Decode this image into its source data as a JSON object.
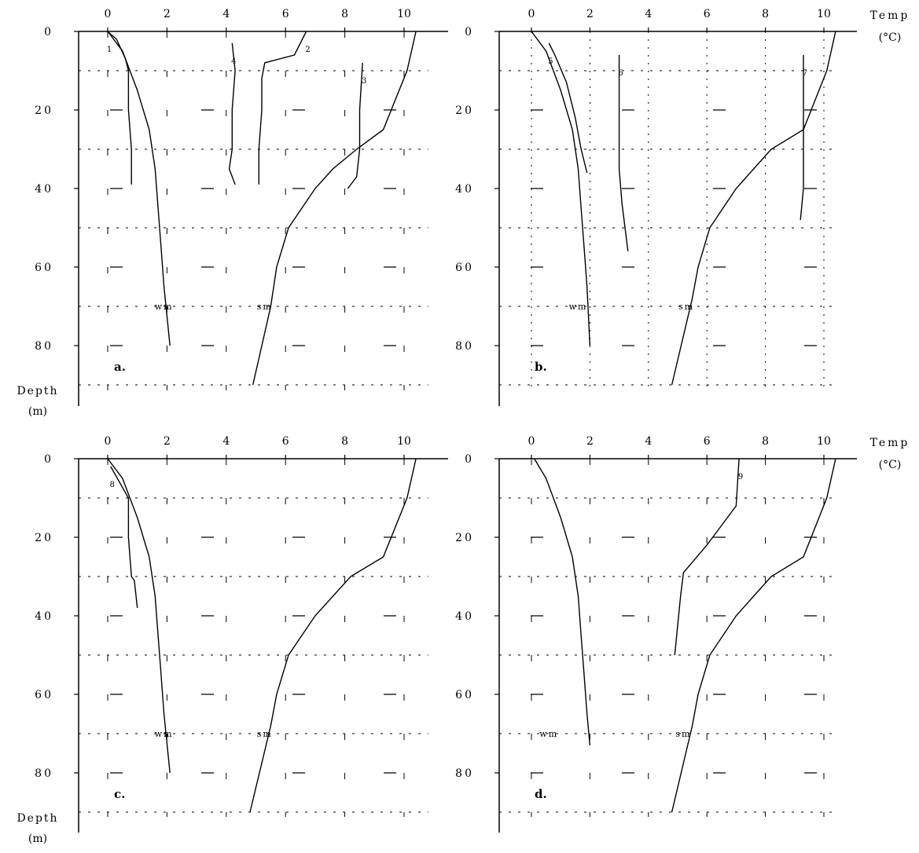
{
  "chart_data": [
    {
      "panel": "a.",
      "type": "line",
      "x_axis": {
        "label": "",
        "ticks": [
          0,
          2,
          4,
          6,
          8,
          10
        ],
        "range": [
          -1,
          11
        ]
      },
      "y_axis": {
        "label": "Depth (m)",
        "ticks": [
          0,
          20,
          40,
          60,
          80
        ],
        "range": [
          0,
          95
        ]
      },
      "grid": "dashed, 10 m horizontal and 2 °C vertical",
      "series": [
        {
          "name": "wm",
          "values": [
            [
              0,
              0
            ],
            [
              0.5,
              5
            ],
            [
              1.0,
              15
            ],
            [
              1.4,
              25
            ],
            [
              1.6,
              35
            ],
            [
              1.7,
              45
            ],
            [
              1.8,
              55
            ],
            [
              1.9,
              65
            ],
            [
              2.1,
              80
            ]
          ]
        },
        {
          "name": "sm",
          "values": [
            [
              10.4,
              0
            ],
            [
              10.1,
              10
            ],
            [
              9.3,
              25
            ],
            [
              8.4,
              30
            ],
            [
              7.6,
              35
            ],
            [
              7.0,
              40
            ],
            [
              6.1,
              50
            ],
            [
              5.7,
              60
            ],
            [
              5.5,
              70
            ],
            [
              4.9,
              90
            ]
          ]
        },
        {
          "name": "1",
          "values": [
            [
              0,
              0
            ],
            [
              0.3,
              2
            ],
            [
              0.6,
              7
            ],
            [
              0.7,
              10
            ],
            [
              0.7,
              20
            ],
            [
              0.8,
              30
            ],
            [
              0.8,
              39
            ]
          ]
        },
        {
          "name": "2",
          "values": [
            [
              6.7,
              0
            ],
            [
              6.3,
              6
            ],
            [
              5.3,
              8
            ],
            [
              5.2,
              12
            ],
            [
              5.2,
              20
            ],
            [
              5.1,
              30
            ],
            [
              5.1,
              39
            ]
          ]
        },
        {
          "name": "3",
          "values": [
            [
              8.6,
              8
            ],
            [
              8.5,
              20
            ],
            [
              8.5,
              30
            ],
            [
              8.4,
              37
            ],
            [
              8.1,
              40
            ]
          ]
        },
        {
          "name": "4",
          "values": [
            [
              4.2,
              3
            ],
            [
              4.3,
              10
            ],
            [
              4.2,
              20
            ],
            [
              4.2,
              30
            ],
            [
              4.1,
              35
            ],
            [
              4.3,
              39
            ]
          ]
        }
      ],
      "markers": [
        {
          "text": "wm",
          "x": 1.9,
          "y": 70
        },
        {
          "text": "sm",
          "x": 5.3,
          "y": 70
        }
      ]
    },
    {
      "panel": "b.",
      "type": "line",
      "x_axis": {
        "label": "Temp (°C)",
        "ticks": [
          0,
          2,
          4,
          6,
          8,
          10
        ],
        "range": [
          -1,
          11
        ]
      },
      "y_axis": {
        "label": "",
        "ticks": [
          0,
          20,
          40,
          60,
          80
        ],
        "range": [
          0,
          95
        ]
      },
      "grid": "dashed horizontal, dotted vertical",
      "series": [
        {
          "name": "wm",
          "values": [
            [
              0,
              0
            ],
            [
              0.5,
              5
            ],
            [
              1.0,
              15
            ],
            [
              1.4,
              25
            ],
            [
              1.6,
              35
            ],
            [
              1.7,
              45
            ],
            [
              1.8,
              55
            ],
            [
              1.9,
              65
            ],
            [
              2.0,
              80
            ]
          ]
        },
        {
          "name": "sm",
          "values": [
            [
              10.4,
              0
            ],
            [
              10.1,
              10
            ],
            [
              9.3,
              25
            ],
            [
              8.2,
              30
            ],
            [
              7.6,
              35
            ],
            [
              7.0,
              40
            ],
            [
              6.1,
              50
            ],
            [
              5.7,
              60
            ],
            [
              5.5,
              68
            ],
            [
              4.8,
              90
            ]
          ]
        },
        {
          "name": "5",
          "values": [
            [
              0.6,
              3
            ],
            [
              0.8,
              6
            ],
            [
              1.2,
              13
            ],
            [
              1.5,
              22
            ],
            [
              1.7,
              30
            ],
            [
              1.9,
              36
            ]
          ]
        },
        {
          "name": "6",
          "values": [
            [
              3.0,
              6
            ],
            [
              3.0,
              20
            ],
            [
              3.0,
              35
            ],
            [
              3.1,
              44
            ],
            [
              3.3,
              56
            ]
          ]
        },
        {
          "name": "7",
          "values": [
            [
              9.3,
              6
            ],
            [
              9.3,
              20
            ],
            [
              9.3,
              30
            ],
            [
              9.3,
              40
            ],
            [
              9.2,
              48
            ]
          ]
        }
      ],
      "markers": [
        {
          "text": "wm",
          "x": 1.6,
          "y": 70
        },
        {
          "text": "sm",
          "x": 5.3,
          "y": 70
        }
      ]
    },
    {
      "panel": "c.",
      "type": "line",
      "x_axis": {
        "label": "",
        "ticks": [
          0,
          2,
          4,
          6,
          8,
          10
        ],
        "range": [
          -1,
          11
        ]
      },
      "y_axis": {
        "label": "Depth (m)",
        "ticks": [
          0,
          20,
          40,
          60,
          80
        ],
        "range": [
          0,
          95
        ]
      },
      "grid": "dashed, 10 m horizontal and 2 °C vertical",
      "series": [
        {
          "name": "wm",
          "values": [
            [
              0,
              0
            ],
            [
              0.5,
              5
            ],
            [
              1.0,
              15
            ],
            [
              1.4,
              25
            ],
            [
              1.6,
              35
            ],
            [
              1.7,
              45
            ],
            [
              1.8,
              55
            ],
            [
              1.9,
              65
            ],
            [
              2.1,
              80
            ]
          ]
        },
        {
          "name": "sm",
          "values": [
            [
              10.4,
              0
            ],
            [
              10.1,
              10
            ],
            [
              9.3,
              25
            ],
            [
              8.2,
              30
            ],
            [
              7.6,
              35
            ],
            [
              7.0,
              40
            ],
            [
              6.1,
              50
            ],
            [
              5.7,
              60
            ],
            [
              5.5,
              68
            ],
            [
              4.8,
              90
            ]
          ]
        },
        {
          "name": "8",
          "values": [
            [
              0.1,
              2
            ],
            [
              0.7,
              10
            ],
            [
              0.7,
              20
            ],
            [
              0.8,
              30
            ],
            [
              0.9,
              31
            ],
            [
              1.0,
              38
            ]
          ]
        }
      ],
      "markers": [
        {
          "text": "wm",
          "x": 1.9,
          "y": 70
        },
        {
          "text": "sm",
          "x": 5.3,
          "y": 70
        }
      ]
    },
    {
      "panel": "d.",
      "type": "line",
      "x_axis": {
        "label": "Temp (°C)",
        "ticks": [
          0,
          2,
          4,
          6,
          8,
          10
        ],
        "range": [
          -1,
          11
        ]
      },
      "y_axis": {
        "label": "",
        "ticks": [
          0,
          20,
          40,
          60,
          80
        ],
        "range": [
          0,
          95
        ]
      },
      "grid": "dashed, 10 m horizontal and 2 °C vertical",
      "series": [
        {
          "name": "wm",
          "values": [
            [
              0.1,
              0
            ],
            [
              0.5,
              5
            ],
            [
              1.0,
              15
            ],
            [
              1.4,
              25
            ],
            [
              1.6,
              35
            ],
            [
              1.7,
              45
            ],
            [
              1.8,
              55
            ],
            [
              1.9,
              65
            ],
            [
              2.0,
              73
            ]
          ]
        },
        {
          "name": "sm",
          "values": [
            [
              10.4,
              0
            ],
            [
              10.1,
              10
            ],
            [
              9.3,
              25
            ],
            [
              8.2,
              30
            ],
            [
              7.6,
              35
            ],
            [
              7.0,
              40
            ],
            [
              6.1,
              50
            ],
            [
              5.7,
              60
            ],
            [
              5.5,
              68
            ],
            [
              4.8,
              90
            ]
          ]
        },
        {
          "name": "9",
          "values": [
            [
              7.1,
              0
            ],
            [
              7.0,
              12
            ],
            [
              6.0,
              22
            ],
            [
              5.2,
              29
            ],
            [
              5.1,
              35
            ],
            [
              4.9,
              50
            ]
          ]
        }
      ],
      "markers": [
        {
          "text": "wm",
          "x": 0.6,
          "y": 70
        },
        {
          "text": "sm",
          "x": 5.2,
          "y": 70
        }
      ]
    }
  ]
}
